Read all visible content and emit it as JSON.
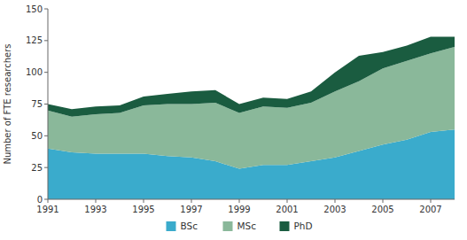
{
  "chart_data": {
    "type": "area",
    "stacked": true,
    "y_label": "Number of FTE researchers",
    "x": [
      1991,
      1992,
      1993,
      1994,
      1995,
      1996,
      1997,
      1998,
      1999,
      2000,
      2001,
      2002,
      2003,
      2004,
      2005,
      2006,
      2007,
      2008
    ],
    "series": [
      {
        "name": "BSc",
        "color": "#3aabcc",
        "values": [
          40,
          37,
          36,
          36,
          36,
          34,
          33,
          30,
          24,
          27,
          27,
          30,
          33,
          38,
          43,
          47,
          53,
          55
        ]
      },
      {
        "name": "MSc",
        "color": "#8ab89a",
        "values": [
          30,
          28,
          31,
          32,
          38,
          41,
          42,
          46,
          44,
          46,
          45,
          46,
          52,
          55,
          60,
          62,
          62,
          65
        ]
      },
      {
        "name": "PhD",
        "color": "#1a5c40",
        "values": [
          5,
          6,
          6,
          6,
          7,
          8,
          10,
          10,
          7,
          7,
          7,
          9,
          15,
          20,
          13,
          12,
          13,
          8
        ]
      }
    ],
    "xlim": [
      1991,
      2008
    ],
    "xticks": [
      1991,
      1993,
      1995,
      1997,
      1999,
      2001,
      2003,
      2005,
      2007
    ],
    "ylim": [
      0,
      150
    ],
    "yticks": [
      0,
      25,
      50,
      75,
      100,
      125,
      150
    ],
    "grid": false,
    "legend": "bottom"
  }
}
